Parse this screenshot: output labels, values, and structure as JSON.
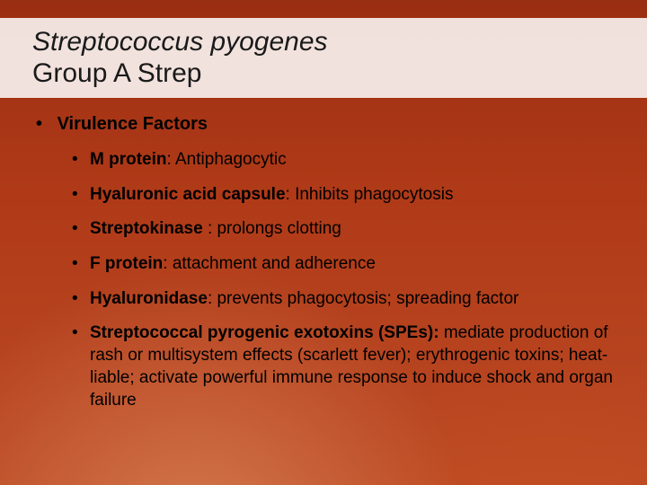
{
  "colors": {
    "background_top": "#9a2e12",
    "background_mid": "#b03a18",
    "background_bottom": "#bb4a24",
    "title_bg": "#ffffff",
    "title_bg_alpha": 0.86,
    "text": "#000000",
    "title_text": "#1a1a1a"
  },
  "typography": {
    "title_fontsize": 30,
    "lvl1_fontsize": 20,
    "lvl2_fontsize": 19,
    "font_family": "Arial"
  },
  "title": {
    "line1_italic": "Streptococcus pyogenes",
    "line2": "Group A Strep"
  },
  "heading": "Virulence Factors",
  "bullets": [
    {
      "bold": "M protein",
      "rest": ": Antiphagocytic"
    },
    {
      "bold": "Hyaluronic acid capsule",
      "rest": ": Inhibits phagocytosis"
    },
    {
      "bold": "Streptokinase ",
      "rest": ": prolongs clotting"
    },
    {
      "bold": "F protein",
      "rest": ": attachment and adherence"
    },
    {
      "bold": "Hyaluronidase",
      "rest": ": prevents phagocytosis; spreading factor"
    },
    {
      "bold": "Streptococcal pyrogenic exotoxins (SPEs): ",
      "rest": "mediate production of rash or multisystem effects (scarlett fever); erythrogenic toxins; heat-liable; activate powerful immune response to induce shock and organ failure"
    }
  ],
  "bullet_char": "•"
}
